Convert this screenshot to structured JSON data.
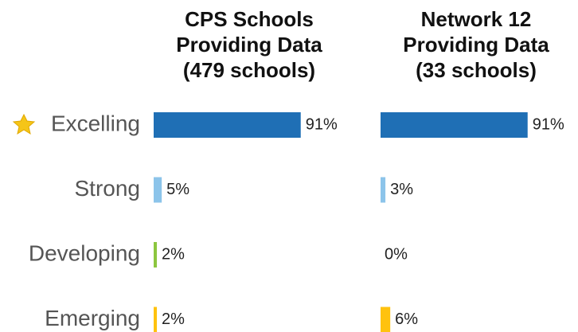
{
  "chart_data": {
    "type": "bar",
    "categories": [
      "Excelling",
      "Strong",
      "Developing",
      "Emerging"
    ],
    "colors": [
      "#1f6fb5",
      "#8cc4ea",
      "#8cc63f",
      "#ffc20e"
    ],
    "series": [
      {
        "name": "CPS Schools\nProviding Data\n(479 schools)",
        "values": [
          91,
          5,
          2,
          2
        ],
        "value_labels": [
          "91%",
          "5%",
          "2%",
          "2%"
        ]
      },
      {
        "name": "Network 12\nProviding Data\n(33 schools)",
        "values": [
          91,
          3,
          0,
          6
        ],
        "value_labels": [
          "91%",
          "3%",
          "0%",
          "6%"
        ]
      }
    ]
  }
}
